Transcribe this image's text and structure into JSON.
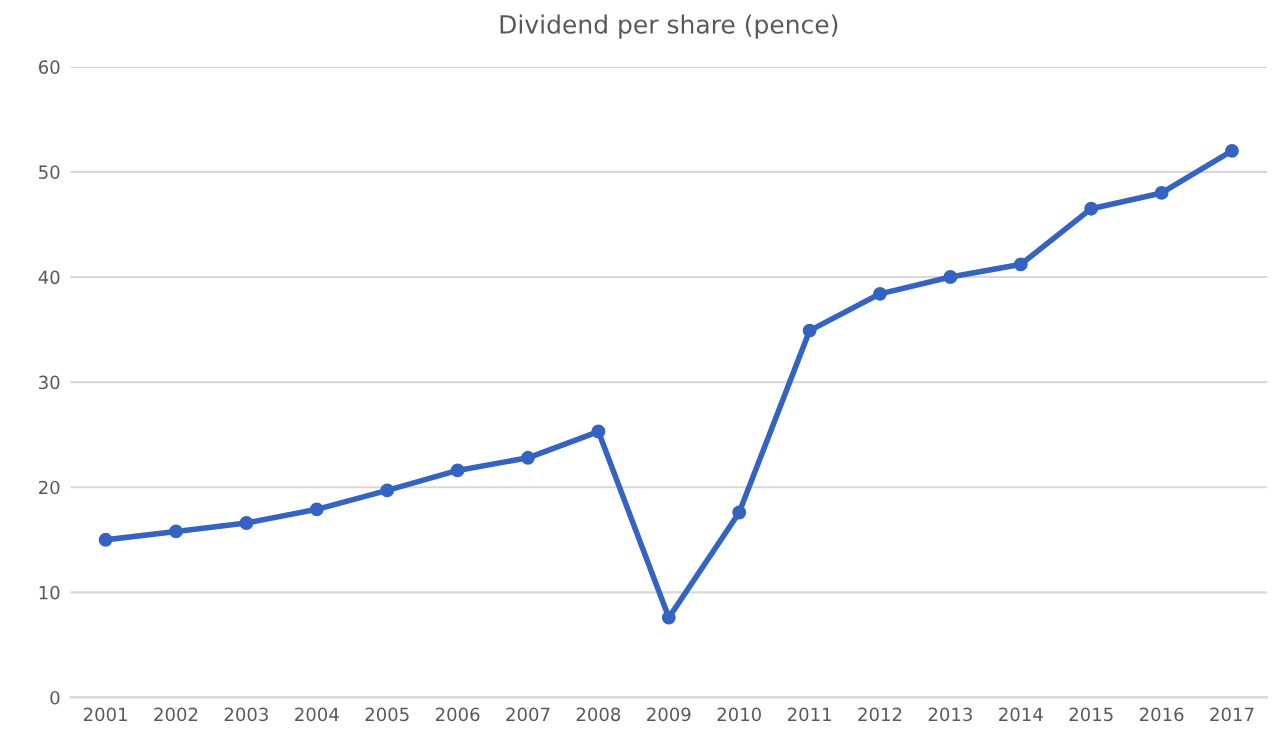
{
  "chart_data": {
    "type": "line",
    "title": "Dividend per share (pence)",
    "categories": [
      "2001",
      "2002",
      "2003",
      "2004",
      "2005",
      "2006",
      "2007",
      "2008",
      "2009",
      "2010",
      "2011",
      "2012",
      "2013",
      "2014",
      "2015",
      "2016",
      "2017"
    ],
    "series": [
      {
        "color": "#3563c2",
        "values": [
          15.0,
          15.8,
          16.6,
          17.9,
          19.7,
          21.6,
          22.8,
          25.3,
          7.6,
          17.6,
          34.9,
          38.4,
          40.0,
          41.2,
          46.5,
          48.0,
          52.0
        ]
      }
    ],
    "ylim": [
      0,
      60
    ],
    "yticks": [
      0,
      10,
      20,
      30,
      40,
      50,
      60
    ],
    "grid": "y",
    "marker": "circle",
    "line_style": "solid",
    "legend": false
  }
}
